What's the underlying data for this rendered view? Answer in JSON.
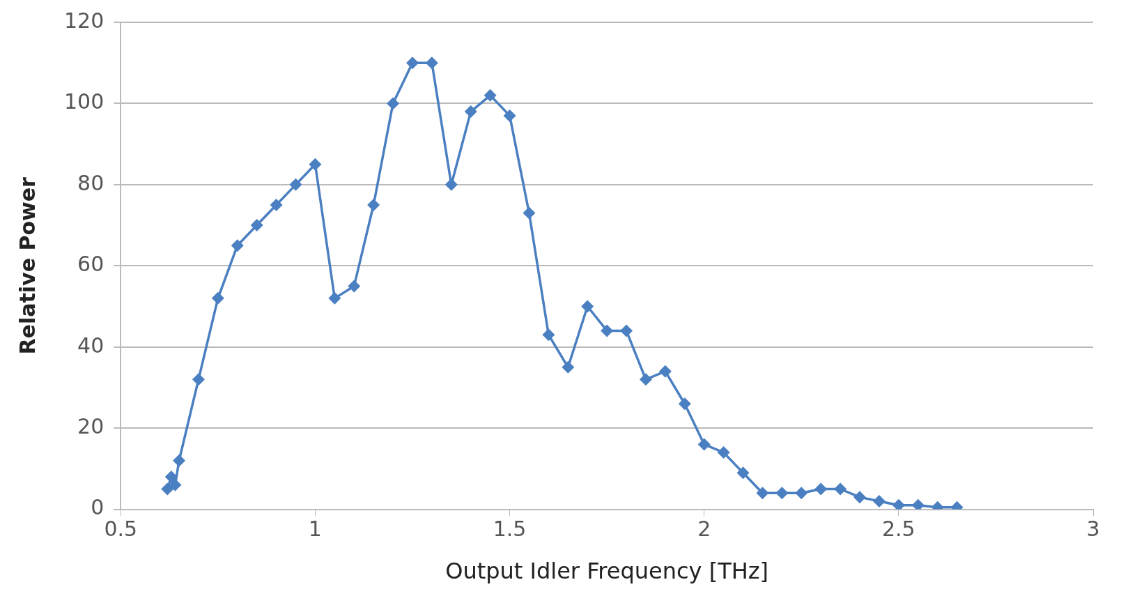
{
  "chart_data": {
    "type": "line",
    "xlabel": "Output Idler Frequency [THz]",
    "ylabel": "Relative Power",
    "x": [
      0.62,
      0.63,
      0.64,
      0.65,
      0.7,
      0.75,
      0.8,
      0.85,
      0.9,
      0.95,
      1.0,
      1.05,
      1.1,
      1.15,
      1.2,
      1.25,
      1.3,
      1.35,
      1.4,
      1.45,
      1.5,
      1.55,
      1.6,
      1.65,
      1.7,
      1.75,
      1.8,
      1.85,
      1.9,
      1.95,
      2.0,
      2.05,
      2.1,
      2.15,
      2.2,
      2.25,
      2.3,
      2.35,
      2.4,
      2.45,
      2.5,
      2.55,
      2.6,
      2.65
    ],
    "values": [
      5,
      8,
      6,
      12,
      32,
      52,
      65,
      70,
      75,
      80,
      85,
      52,
      55,
      75,
      100,
      110,
      110,
      80,
      98,
      102,
      97,
      73,
      43,
      35,
      50,
      44,
      44,
      32,
      34,
      26,
      16,
      14,
      9,
      4,
      4,
      4,
      5,
      5,
      3,
      2,
      1,
      1,
      0.5,
      0.5
    ],
    "color": "#4a7fc1",
    "marker": "diamond",
    "line_style": "solid",
    "xlim": [
      0.5,
      3
    ],
    "xticks": [
      0.5,
      1,
      1.5,
      2,
      2.5,
      3
    ],
    "ylim": [
      0,
      120
    ],
    "yticks": [
      0,
      20,
      40,
      60,
      80,
      100,
      120
    ],
    "grid": "y",
    "legend": false
  }
}
